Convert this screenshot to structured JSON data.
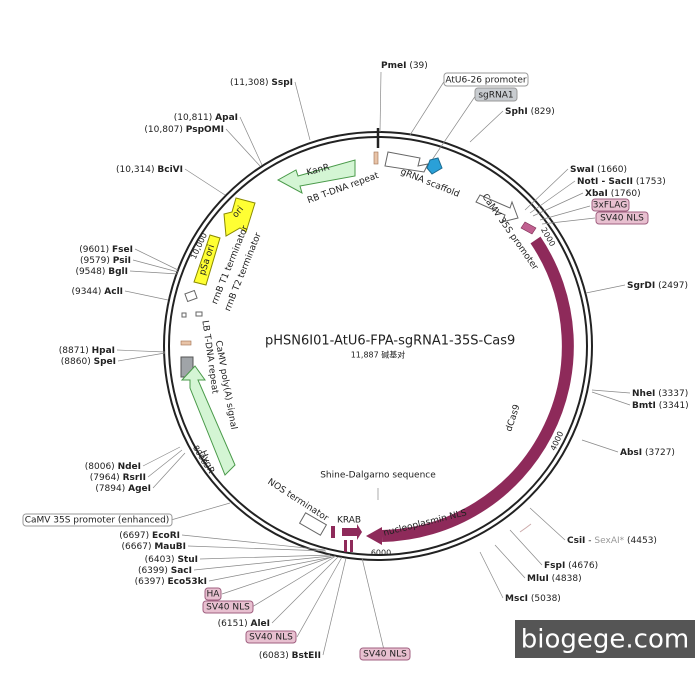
{
  "title": "pHSN6I01-AtU6-FPA-sgRNA1-35S-Cas9",
  "size": "11,887 碱基对",
  "watermark": "biogege.com",
  "sites": [
    {
      "name": "PmeI",
      "position": "(39)"
    },
    {
      "name": "SphI",
      "position": "(829)"
    },
    {
      "name": "SwaI",
      "position": "(1660)"
    },
    {
      "name": "NotI - SacII",
      "position": "(1753)"
    },
    {
      "name": "XbaI",
      "position": "(1760)"
    },
    {
      "name": "SgrDI",
      "position": "(2497)"
    },
    {
      "name": "NheI",
      "position": "(3337)"
    },
    {
      "name": "BmtI",
      "position": "(3341)"
    },
    {
      "name": "AbsI",
      "position": "(3727)"
    },
    {
      "name": "CsiI",
      "separator": "-",
      "alt": "SexAI*",
      "position": "(4453)"
    },
    {
      "name": "FspI",
      "position": "(4676)"
    },
    {
      "name": "MluI",
      "position": "(4838)"
    },
    {
      "name": "MscI",
      "position": "(5038)"
    },
    {
      "name": "SspI",
      "position": "(11,308)"
    },
    {
      "name": "ApaI",
      "position": "(10,811)"
    },
    {
      "name": "PspOMI",
      "position": "(10,807)"
    },
    {
      "name": "BciVI",
      "position": "(10,314)"
    },
    {
      "name": "FseI",
      "position": "(9601)"
    },
    {
      "name": "PsiI",
      "position": "(9579)"
    },
    {
      "name": "BglI",
      "position": "(9548)"
    },
    {
      "name": "AclI",
      "position": "(9344)"
    },
    {
      "name": "HpaI",
      "position": "(8871)"
    },
    {
      "name": "SpeI",
      "position": "(8860)"
    },
    {
      "name": "NdeI",
      "position": "(8006)"
    },
    {
      "name": "RsrII",
      "position": "(7964)"
    },
    {
      "name": "AgeI",
      "position": "(7894)"
    },
    {
      "name": "EcoRI",
      "position": "(6697)"
    },
    {
      "name": "MauBI",
      "position": "(6667)"
    },
    {
      "name": "StuI",
      "position": "(6403)"
    },
    {
      "name": "SacI",
      "position": "(6399)"
    },
    {
      "name": "Eco53kI",
      "position": "(6397)"
    },
    {
      "name": "AleI",
      "position": "(6151)"
    },
    {
      "name": "BstEII",
      "position": "(6083)"
    }
  ],
  "features": [
    "AtU6-26 promoter",
    "sgRNA1",
    "gRNA scaffold",
    "CaMV 35S promoter",
    "3xFLAG",
    "SV40 NLS",
    "dCas9",
    "nucleoplasmin NLS",
    "KRAB",
    "HA",
    "SV40 NLS",
    "SV40 NLS",
    "SV40 NLS",
    "NOS terminator",
    "CaMV 35S promoter (enhanced)",
    "HygR",
    "CaMV poly(A) signal",
    "LB T-DNA repeat",
    "rrnB T2 terminator",
    "rrnB T1 terminator",
    "pSa ori",
    "ori",
    "KanR",
    "RB T-DNA repeat",
    "Shine-Dalgarno sequence"
  ],
  "ruler": [
    "2000",
    "4000",
    "6000",
    "8000",
    "10,000"
  ]
}
